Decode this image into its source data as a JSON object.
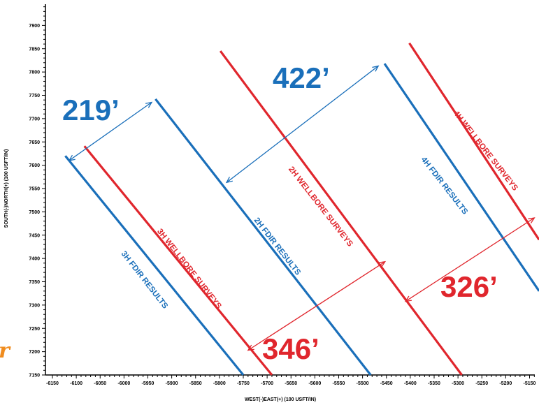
{
  "chart_data": {
    "type": "line",
    "xlabel": "WEST(-)EAST(+) (100 USFT/IN)",
    "ylabel": "SOUTH(-)NORTH(+) (100 USFT/IN)",
    "xlim": [
      -6150,
      -5130
    ],
    "ylim": [
      7150,
      7960
    ],
    "x_ticks": [
      "-6150",
      "-6100",
      "-6050",
      "-6000",
      "-5950",
      "-5900",
      "-5850",
      "-5800",
      "-5750",
      "-5700",
      "-5650",
      "-5600",
      "-5550",
      "-5500",
      "-5450",
      "-5400",
      "-5350",
      "-5300",
      "-5250",
      "-5200",
      "-5150"
    ],
    "y_ticks": [
      "7150",
      "7200",
      "7250",
      "7300",
      "7350",
      "7400",
      "7450",
      "7500",
      "7550",
      "7600",
      "7650",
      "7700",
      "7750",
      "7800",
      "7850",
      "7900"
    ],
    "series": [
      {
        "name": "3H FDIR RESULTS",
        "color": "#1a6fba",
        "points": [
          [
            -6123,
            7620
          ],
          [
            -5750,
            7150
          ]
        ]
      },
      {
        "name": "3H WELLBORE SURVEYS",
        "color": "#e0262d",
        "points": [
          [
            -6083,
            7641
          ],
          [
            -5690,
            7150
          ]
        ]
      },
      {
        "name": "2H FDIR RESULTS",
        "color": "#1a6fba",
        "points": [
          [
            -5934,
            7742
          ],
          [
            -5483,
            7150
          ]
        ]
      },
      {
        "name": "2H WELLBORE SURVEYS",
        "color": "#e0262d",
        "points": [
          [
            -5798,
            7845
          ],
          [
            -5292,
            7150
          ]
        ]
      },
      {
        "name": "4H FDIR RESULTS",
        "color": "#1a6fba",
        "points": [
          [
            -5454,
            7818
          ],
          [
            -5130,
            7330
          ]
        ]
      },
      {
        "name": "4H WELLBORE SURVEYS",
        "color": "#e0262d",
        "points": [
          [
            -5402,
            7862
          ],
          [
            -5130,
            7440
          ]
        ]
      }
    ],
    "annotations": [
      {
        "text": "219’",
        "color": "#1a6fba",
        "arrow": [
          [
            -6115,
            7610
          ],
          [
            -5942,
            7735
          ]
        ]
      },
      {
        "text": "422’",
        "color": "#1a6fba",
        "arrow": [
          [
            -5785,
            7563
          ],
          [
            -5467,
            7813
          ]
        ]
      },
      {
        "text": "346’",
        "color": "#e0262d",
        "arrow": [
          [
            -5740,
            7203
          ],
          [
            -5453,
            7393
          ]
        ]
      },
      {
        "text": "326’",
        "color": "#e0262d",
        "arrow": [
          [
            -5410,
            7308
          ],
          [
            -5140,
            7487
          ]
        ]
      }
    ],
    "partial_text": "r"
  },
  "colors": {
    "blue": "#1a6fba",
    "red": "#e0262d",
    "orange": "#f08c1e"
  }
}
